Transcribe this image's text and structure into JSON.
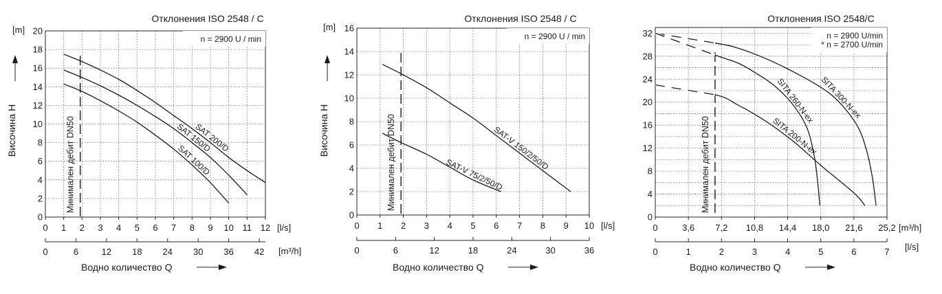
{
  "chart_data": [
    {
      "type": "line",
      "title": "Отклонения ISO 2548 / C",
      "info_lines": [
        "n = 2900  U / min"
      ],
      "y_unit": "[m]",
      "ylabel": "Височина  H",
      "ylim": [
        0,
        20
      ],
      "y_ticks": [
        "0",
        "2",
        "4",
        "6",
        "8",
        "10",
        "12",
        "14",
        "16",
        "18",
        "20"
      ],
      "x_unit": "[l/s]",
      "xlim": [
        0,
        12
      ],
      "x_ticks": [
        "0",
        "1",
        "2",
        "3",
        "4",
        "5",
        "6",
        "7",
        "8",
        "9",
        "10",
        "11",
        "12"
      ],
      "x2_unit": "[m³/h]",
      "x2_ticks": [
        "0",
        "6",
        "12",
        "18",
        "24",
        "30",
        "36",
        "42"
      ],
      "x2_tick_values": [
        0,
        6,
        12,
        18,
        24,
        30,
        36,
        42
      ],
      "xlabel": "Водно количество Q",
      "min_flow_label": "Минимален дебит DN50",
      "min_flow_x": 1.9,
      "series": [
        {
          "name": "SAT 200/D",
          "x": [
            1,
            2,
            3,
            4,
            5,
            6,
            7,
            8,
            9,
            10,
            11,
            12
          ],
          "y": [
            17.5,
            16.7,
            15.8,
            14.8,
            13.6,
            12.3,
            10.9,
            9.5,
            8.0,
            6.4,
            5.0,
            3.7
          ]
        },
        {
          "name": "SAT 150/D",
          "x": [
            1,
            2,
            3,
            4,
            5,
            6,
            7,
            8,
            9,
            10,
            11
          ],
          "y": [
            15.8,
            15.0,
            14.1,
            13.1,
            12.0,
            10.8,
            9.5,
            8.0,
            6.4,
            4.5,
            2.4
          ]
        },
        {
          "name": "SAT 100/D",
          "x": [
            1,
            2,
            3,
            4,
            5,
            6,
            7,
            8,
            9,
            10
          ],
          "y": [
            14.3,
            13.5,
            12.5,
            11.4,
            10.2,
            8.8,
            7.3,
            5.6,
            3.7,
            1.5
          ]
        }
      ]
    },
    {
      "type": "line",
      "title": "Отклонения ISO 2548 / C",
      "info_lines": [
        "n = 2900  U / min"
      ],
      "y_unit": "[m]",
      "ylabel": "Височина  H",
      "ylim": [
        0,
        16
      ],
      "y_ticks": [
        "0",
        "2",
        "4",
        "6",
        "8",
        "10",
        "12",
        "14",
        "16"
      ],
      "x_unit": "[l/s]",
      "xlim": [
        0,
        10
      ],
      "x_ticks": [
        "0",
        "1",
        "2",
        "3",
        "4",
        "5",
        "6",
        "7",
        "8",
        "9",
        "10"
      ],
      "x2_unit": "",
      "x2_ticks": [
        "0",
        "6",
        "12",
        "18",
        "24",
        "30",
        "36"
      ],
      "x2_tick_values": [
        0,
        6,
        12,
        18,
        24,
        30,
        36
      ],
      "xlabel": "Водно количество Q",
      "min_flow_label": "Минимален дебит DN50",
      "min_flow_x": 1.9,
      "series": [
        {
          "name": "SAT-V 150/2/50/D",
          "x": [
            1.1,
            1.9,
            3,
            4,
            5,
            6,
            7,
            8,
            9.2
          ],
          "y": [
            12.9,
            12.1,
            10.9,
            9.6,
            8.3,
            6.8,
            5.3,
            3.8,
            2.0
          ]
        },
        {
          "name": "SAT-V 75/2/50/D",
          "x": [
            1.1,
            1.9,
            3,
            4,
            5,
            6.2
          ],
          "y": [
            7.0,
            6.2,
            5.2,
            4.1,
            3.0,
            2.0
          ]
        }
      ]
    },
    {
      "type": "line",
      "title": "Отклонения ISO 2548/C",
      "info_lines": [
        "n = 2900 U/min",
        "* n = 2700 U/min"
      ],
      "y_unit": "",
      "ylabel": "",
      "ylim": [
        0,
        33
      ],
      "y_ticks": [
        "0",
        "4",
        "8",
        "12",
        "16",
        "20",
        "24",
        "28",
        "32"
      ],
      "y_tick_values": [
        0,
        4,
        8,
        12,
        16,
        20,
        24,
        28,
        32
      ],
      "x_unit": "[m³/h]",
      "xlim": [
        0,
        25.2
      ],
      "x_ticks": [
        "0",
        "3,6",
        "7,2",
        "10,8",
        "14,4",
        "18,0",
        "21,6",
        "25,2"
      ],
      "x_tick_values": [
        0,
        3.6,
        7.2,
        10.8,
        14.4,
        18.0,
        21.6,
        25.2
      ],
      "x2_unit": "[l/s]",
      "x2_ticks": [
        "0",
        "1",
        "2",
        "3",
        "4",
        "5",
        "6",
        "7"
      ],
      "x2_tick_values": [
        0,
        1,
        2,
        3,
        4,
        5,
        6,
        7
      ],
      "xlabel": "Водно количество Q",
      "min_flow_label": "Минимален дебит DN50",
      "min_flow_x": 6.5,
      "series": [
        {
          "name": "SITA 300-N-ex",
          "x": [
            0,
            6.5,
            9,
            12,
            15,
            18,
            20,
            22,
            23,
            23.6,
            23.9,
            24.0
          ],
          "y": [
            32,
            30.3,
            29.4,
            27.6,
            25.3,
            22.6,
            20.0,
            15.8,
            11.5,
            7.0,
            3.5,
            2.0
          ]
        },
        {
          "name": "SITA 260-N-ex",
          "x": [
            0,
            6.5,
            9,
            11,
            13,
            15,
            16.5,
            17.3,
            17.7,
            17.9
          ],
          "y": [
            32,
            28.2,
            26.8,
            25.0,
            22.8,
            19.5,
            15.5,
            10.5,
            5.5,
            2.0
          ]
        },
        {
          "name": "SITA 200-N-ex",
          "x": [
            0,
            6.5,
            9,
            12,
            15,
            18,
            21.6,
            22.8
          ],
          "y": [
            23,
            21.3,
            19.5,
            16.7,
            13.2,
            9.0,
            4.2,
            2.0
          ]
        }
      ]
    }
  ]
}
